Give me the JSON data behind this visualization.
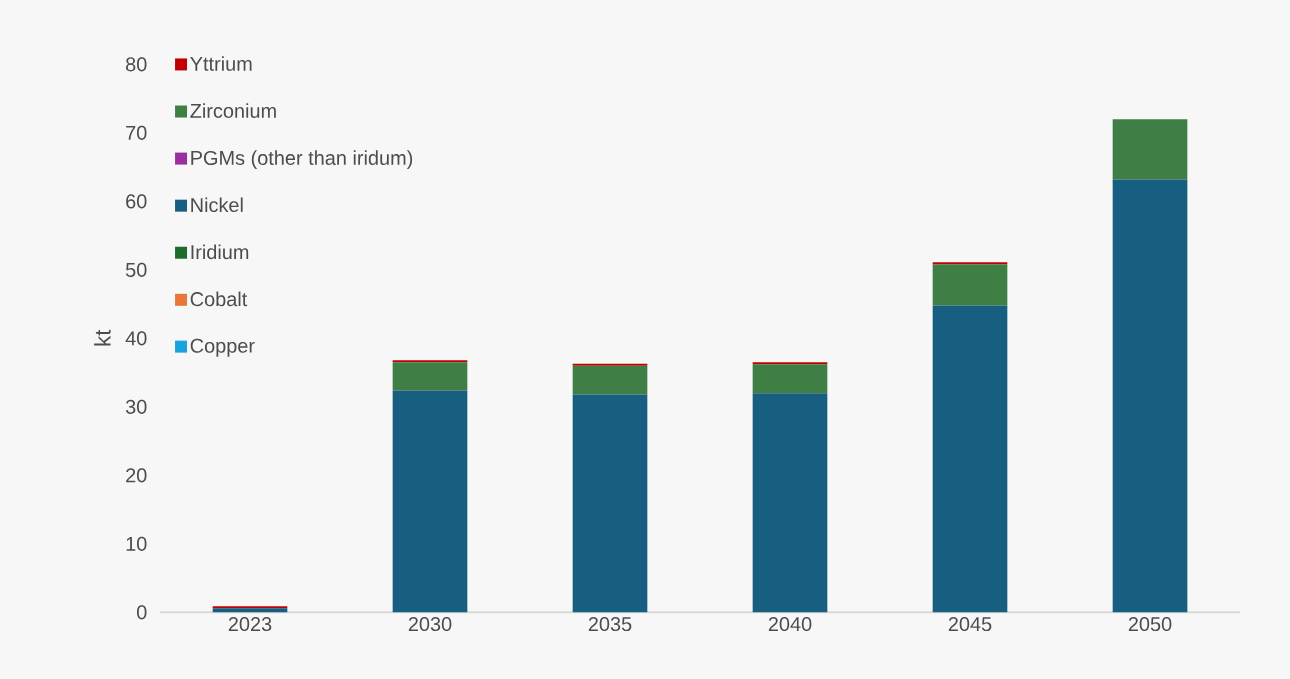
{
  "chart_data": {
    "type": "bar",
    "stacked": true,
    "ylabel": "kt",
    "categories": [
      "2023",
      "2030",
      "2035",
      "2040",
      "2045",
      "2050"
    ],
    "series": [
      {
        "name": "Copper",
        "color": "#1ba1dc",
        "values": [
          0,
          0,
          0,
          0,
          0,
          0
        ]
      },
      {
        "name": "Cobalt",
        "color": "#e8773a",
        "values": [
          0,
          0,
          0,
          0,
          0,
          0
        ]
      },
      {
        "name": "Iridium",
        "color": "#1e6b2e",
        "values": [
          0,
          0,
          0,
          0,
          0,
          0
        ]
      },
      {
        "name": "Nickel",
        "color": "#175f80",
        "values": [
          0.6,
          32.4,
          31.8,
          32.0,
          44.8,
          63.2
        ]
      },
      {
        "name": "PGMs (other than iridum)",
        "color": "#9b2f9e",
        "values": [
          0,
          0,
          0,
          0,
          0,
          0
        ]
      },
      {
        "name": "Zirconium",
        "color": "#3f7f45",
        "values": [
          0,
          4.1,
          4.2,
          4.2,
          6.0,
          8.8
        ]
      },
      {
        "name": "Yttrium",
        "color": "#c00000",
        "values": [
          0.3,
          0.3,
          0.3,
          0.3,
          0.3,
          0
        ]
      }
    ],
    "ylim": [
      0,
      80
    ],
    "yticks": [
      0,
      10,
      20,
      30,
      40,
      50,
      60,
      70,
      80
    ],
    "legend": "top left"
  }
}
